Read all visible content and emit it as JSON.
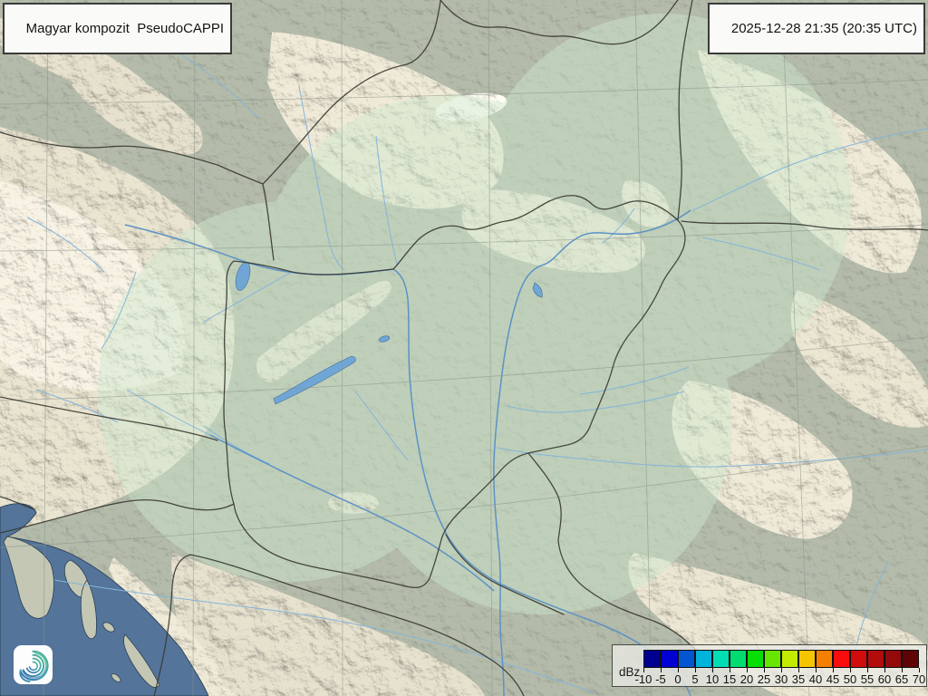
{
  "header": {
    "product_title": "Magyar kompozit  PseudoCAPPI",
    "timestamp": "2025-12-28 21:35 (20:35 UTC)"
  },
  "legend": {
    "unit_label": "dBz",
    "tick_labels": [
      "-10",
      "-5",
      "0",
      "5",
      "10",
      "15",
      "20",
      "25",
      "30",
      "35",
      "40",
      "45",
      "50",
      "55",
      "60",
      "65",
      "70"
    ],
    "colors": [
      "#00008F",
      "#0000D2",
      "#0455D0",
      "#00B3DA",
      "#04DCB4",
      "#00DC70",
      "#06DE06",
      "#66E600",
      "#C2EB00",
      "#F5C500",
      "#F57F00",
      "#FB0C0C",
      "#D00C0C",
      "#B20C0C",
      "#940909",
      "#5E0404"
    ]
  },
  "branding": {
    "logo_name": "hungaromet-swirl-logo"
  },
  "map": {
    "palette": {
      "base_color": "#b0b7a6",
      "tint_color": "#cde9cf",
      "sea_color": "#54749a",
      "river_color": "#85b4da",
      "major_river_color": "#5d92c4",
      "lake_color": "#6fa6d6",
      "border_color": "#3b3b33",
      "coast_color": "#2b3f54",
      "graticule_color": "#8a948a",
      "box_bg": "#fafaf8",
      "box_border": "#3a3a3a",
      "text_color": "#141414"
    }
  }
}
